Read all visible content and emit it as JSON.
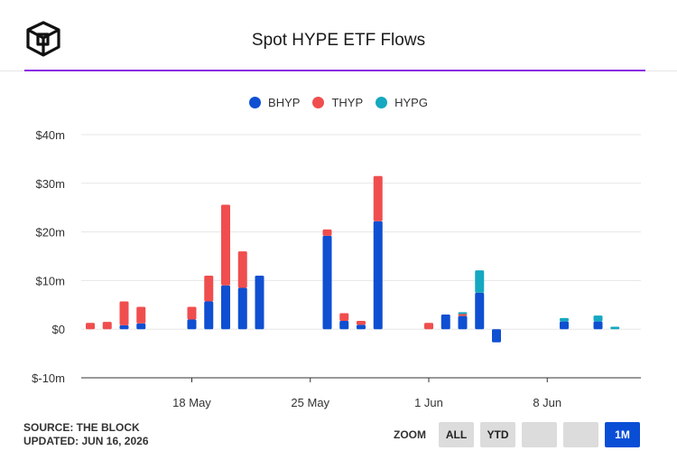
{
  "header": {
    "title": "Spot HYPE ETF Flows"
  },
  "footer": {
    "source": "SOURCE: THE BLOCK",
    "updated": "UPDATED: JUN 16, 2026"
  },
  "zoom": {
    "label": "ZOOM",
    "buttons": [
      "ALL",
      "YTD",
      "",
      "",
      "1M"
    ],
    "active": "1M"
  },
  "colors": {
    "BHYP": "#0f4fd2",
    "THYP": "#f04e4e",
    "HYPG": "#15a8c0",
    "accent_rule": "#8a2be2",
    "zoom_active": "#0a4ed6"
  },
  "icons": [
    "the-block-cube-logo"
  ],
  "chart_data": {
    "type": "bar",
    "stacked": true,
    "title": "Spot HYPE ETF Flows",
    "xlabel": "",
    "ylabel": "",
    "ylim": [
      -10,
      40
    ],
    "yticks": [
      "$-10m",
      "$0",
      "$10m",
      "$20m",
      "$30m",
      "$40m"
    ],
    "ytick_values": [
      -10,
      0,
      10,
      20,
      30,
      40
    ],
    "xtick_labels": [
      {
        "label": "18 May",
        "date": "2026-05-18"
      },
      {
        "label": "25 May",
        "date": "2026-05-25"
      },
      {
        "label": "1 Jun",
        "date": "2026-06-01"
      },
      {
        "label": "8 Jun",
        "date": "2026-06-08"
      }
    ],
    "xlim": [
      "2026-05-12",
      "2026-06-13"
    ],
    "grid": true,
    "legend": "top-center",
    "categories": [
      "2026-05-12",
      "2026-05-13",
      "2026-05-14",
      "2026-05-15",
      "2026-05-18",
      "2026-05-19",
      "2026-05-20",
      "2026-05-21",
      "2026-05-22",
      "2026-05-26",
      "2026-05-27",
      "2026-05-28",
      "2026-05-29",
      "2026-06-01",
      "2026-06-02",
      "2026-06-03",
      "2026-06-04",
      "2026-06-05",
      "2026-06-08",
      "2026-06-09",
      "2026-06-10",
      "2026-06-11",
      "2026-06-12"
    ],
    "series": [
      {
        "name": "BHYP",
        "values": [
          0,
          0,
          0.8,
          1.2,
          2,
          5.7,
          9,
          8.5,
          11,
          19.2,
          1.7,
          0.9,
          22.2,
          0,
          3,
          2.7,
          7.5,
          -2.7,
          0,
          1.6,
          0,
          1.6,
          0
        ]
      },
      {
        "name": "THYP",
        "values": [
          1.3,
          1.5,
          4.9,
          3.4,
          2.6,
          5.3,
          16.6,
          7.5,
          0,
          1.3,
          1.6,
          0.8,
          9.3,
          1.3,
          0,
          0.4,
          0,
          0,
          0,
          0,
          0,
          0,
          0
        ]
      },
      {
        "name": "HYPG",
        "values": [
          0,
          0,
          0,
          0,
          0,
          0,
          0,
          0,
          0,
          0,
          0,
          0,
          0,
          0,
          0,
          0.4,
          4.6,
          0,
          0,
          0.7,
          0,
          1.2,
          0.5
        ]
      }
    ]
  }
}
